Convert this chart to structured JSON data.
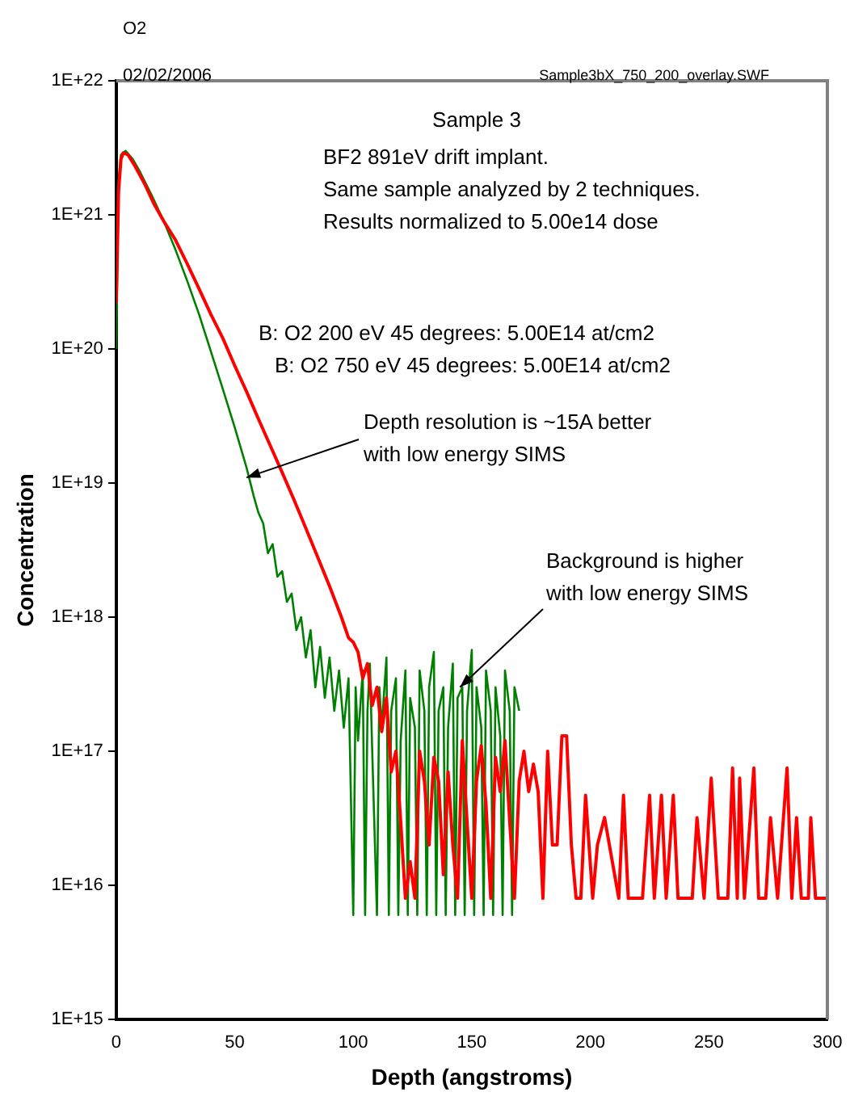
{
  "chart_data": {
    "type": "line",
    "title": "Sample 3",
    "xlabel": "Depth (angstroms)",
    "ylabel": "Concentration",
    "annotations": [
      "O2",
      "02/02/2006",
      "Sample3bX_750_200_overlay.SWF",
      "BF2 891eV drift implant.",
      "Same sample analyzed by 2 techniques.",
      "Results normalized to 5.00e14 dose",
      "B: O2 200 eV 45 degrees: 5.00E14 at/cm2",
      "B: O2 750 eV 45 degrees: 5.00E14 at/cm2",
      {
        "text": "Depth resolution is ~15A better\nwith low energy SIMS",
        "x": 55,
        "y": 1.1e+19
      },
      {
        "text": "Background is higher\nwith low energy SIMS",
        "x": 145,
        "y": 3e+17
      }
    ],
    "xlim": [
      0,
      300
    ],
    "xticks": [
      0,
      50,
      100,
      150,
      200,
      250,
      300
    ],
    "ylim": [
      1000000000000000.0,
      1e+22
    ],
    "yticks": [
      {
        "value": 1000000000000000.0,
        "label": "1E+15"
      },
      {
        "value": 1e+16,
        "label": "1E+16"
      },
      {
        "value": 1e+17,
        "label": "1E+17"
      },
      {
        "value": 1e+18,
        "label": "1E+18"
      },
      {
        "value": 1e+19,
        "label": "1E+19"
      },
      {
        "value": 1e+20,
        "label": "1E+20"
      },
      {
        "value": 1e+21,
        "label": "1E+21"
      },
      {
        "value": 1e+22,
        "label": "1E+22"
      }
    ],
    "log": "y",
    "grid": false,
    "legend": false,
    "marker": "none",
    "line_style": "solid",
    "series": [
      {
        "color": "#008000",
        "x": [
          0,
          1,
          2,
          4,
          7,
          10,
          15,
          20,
          25,
          30,
          35,
          40,
          45,
          50,
          55,
          58,
          60,
          62,
          64,
          66,
          68,
          70,
          72,
          74,
          76,
          78,
          80,
          82,
          84,
          86,
          88,
          90,
          92,
          94,
          96,
          98,
          100,
          101,
          102,
          104,
          105,
          106,
          107,
          108,
          110,
          111,
          112,
          114,
          115,
          116,
          118,
          119,
          120,
          122,
          123,
          124,
          126,
          127,
          128,
          130,
          131,
          132,
          134,
          135,
          136,
          138,
          139,
          140,
          142,
          143,
          144,
          146,
          147,
          148,
          150,
          151,
          152,
          154,
          155,
          156,
          158,
          159,
          160,
          162,
          163,
          164,
          166,
          167,
          168,
          170
        ],
        "values": [
          1e+20,
          1.8e+21,
          2.8e+21,
          3e+21,
          2.6e+21,
          2.1e+21,
          1.4e+21,
          9e+20,
          5.5e+20,
          3.2e+20,
          1.8e+20,
          9.5e+19,
          5e+19,
          2.6e+19,
          1.3e+19,
          8e+18,
          6e+18,
          5e+18,
          3e+18,
          3.5e+18,
          2e+18,
          2.2e+18,
          1.3e+18,
          1.5e+18,
          8e+17,
          1e+18,
          5e+17,
          8e+17,
          3e+17,
          6e+17,
          2.5e+17,
          5e+17,
          2e+17,
          4e+17,
          1.5e+17,
          3.5e+17,
          6000000000000000.0,
          3e+17,
          1.2e+17,
          4e+17,
          6000000000000000.0,
          2e+17,
          4.5e+17,
          1e+17,
          6000000000000000.0,
          3e+17,
          1.5e+17,
          5e+17,
          6000000000000000.0,
          2e+17,
          3.5e+17,
          6000000000000000.0,
          1.2e+17,
          4e+17,
          6000000000000000.0,
          2.5e+17,
          1.5e+17,
          6000000000000000.0,
          4e+17,
          2e+17,
          6000000000000000.0,
          3e+17,
          5.5e+17,
          6000000000000000.0,
          2e+17,
          3e+17,
          6000000000000000.0,
          1.5e+17,
          4.5e+17,
          6000000000000000.0,
          2.5e+17,
          3e+17,
          6000000000000000.0,
          2e+17,
          5.7e+17,
          6000000000000000.0,
          3e+17,
          1.5e+17,
          6000000000000000.0,
          4e+17,
          2e+17,
          6000000000000000.0,
          3e+17,
          1.3e+17,
          6000000000000000.0,
          4e+17,
          2e+17,
          6000000000000000.0,
          3e+17,
          2e+17
        ]
      },
      {
        "color": "#ff0000",
        "x": [
          0,
          1,
          2,
          3,
          5,
          8,
          12,
          16,
          20,
          25,
          30,
          35,
          40,
          45,
          50,
          55,
          60,
          65,
          70,
          75,
          80,
          85,
          90,
          95,
          98,
          100,
          102,
          104,
          106,
          108,
          110,
          112,
          114,
          116,
          118,
          120,
          122,
          124,
          126,
          128,
          130,
          132,
          134,
          136,
          138,
          140,
          142,
          144,
          146,
          148,
          150,
          152,
          154,
          156,
          158,
          160,
          162,
          164,
          166,
          168,
          170,
          172,
          174,
          176,
          178,
          180,
          182,
          184,
          186,
          188,
          190,
          192,
          194,
          196,
          198,
          201,
          203,
          206,
          212,
          214,
          216,
          222,
          225,
          227,
          230,
          232,
          235,
          237,
          240,
          243,
          245,
          248,
          251,
          254,
          258,
          260,
          262,
          263,
          265,
          269,
          271,
          274,
          276,
          279,
          283,
          285,
          287,
          289,
          292,
          293,
          295,
          300
        ],
        "values": [
          2.2e+20,
          1.5e+21,
          2.6e+21,
          2.9e+21,
          2.8e+21,
          2.3e+21,
          1.7e+21,
          1.2e+21,
          9e+20,
          6.5e+20,
          4.3e+20,
          2.8e+20,
          1.8e+20,
          1.2e+20,
          7.5e+19,
          4.8e+19,
          3e+19,
          1.9e+19,
          1.2e+19,
          7.5e+18,
          4.6e+18,
          2.8e+18,
          1.7e+18,
          1e+18,
          7e+17,
          6.5e+17,
          5.5e+17,
          3.5e+17,
          4.5e+17,
          2.2e+17,
          3e+17,
          1.4e+17,
          2.5e+17,
          7e+16,
          1e+17,
          3e+16,
          8000000000000000.0,
          1.5e+16,
          8000000000000000.0,
          1e+17,
          6e+16,
          2e+16,
          9e+16,
          6e+16,
          1.2e+16,
          7e+16,
          2e+16,
          8000000000000000.0,
          1.2e+17,
          3e+16,
          8000000000000000.0,
          6e+16,
          1.1e+17,
          4e+16,
          8000000000000000.0,
          9e+16,
          5e+16,
          1.2e+17,
          3e+16,
          8000000000000000.0,
          6e+16,
          1e+17,
          5e+16,
          8e+16,
          5e+16,
          8000000000000000.0,
          1e+17,
          2e+16,
          2e+16,
          1.3e+17,
          1.3e+17,
          2e+16,
          8000000000000000.0,
          8000000000000000.0,
          4.7e+16,
          8000000000000000.0,
          2e+16,
          3.2e+16,
          8000000000000000.0,
          4.7e+16,
          8000000000000000.0,
          8000000000000000.0,
          4.7e+16,
          8000000000000000.0,
          4.7e+16,
          8000000000000000.0,
          4.7e+16,
          8000000000000000.0,
          8000000000000000.0,
          8000000000000000.0,
          3.2e+16,
          8000000000000000.0,
          6.3e+16,
          8000000000000000.0,
          8000000000000000.0,
          7.5e+16,
          8000000000000000.0,
          6.3e+16,
          8000000000000000.0,
          7.5e+16,
          8000000000000000.0,
          8000000000000000.0,
          3.2e+16,
          8000000000000000.0,
          7.5e+16,
          8000000000000000.0,
          3.2e+16,
          8000000000000000.0,
          8000000000000000.0,
          3.2e+16,
          8000000000000000.0,
          8000000000000000.0
        ]
      }
    ]
  }
}
